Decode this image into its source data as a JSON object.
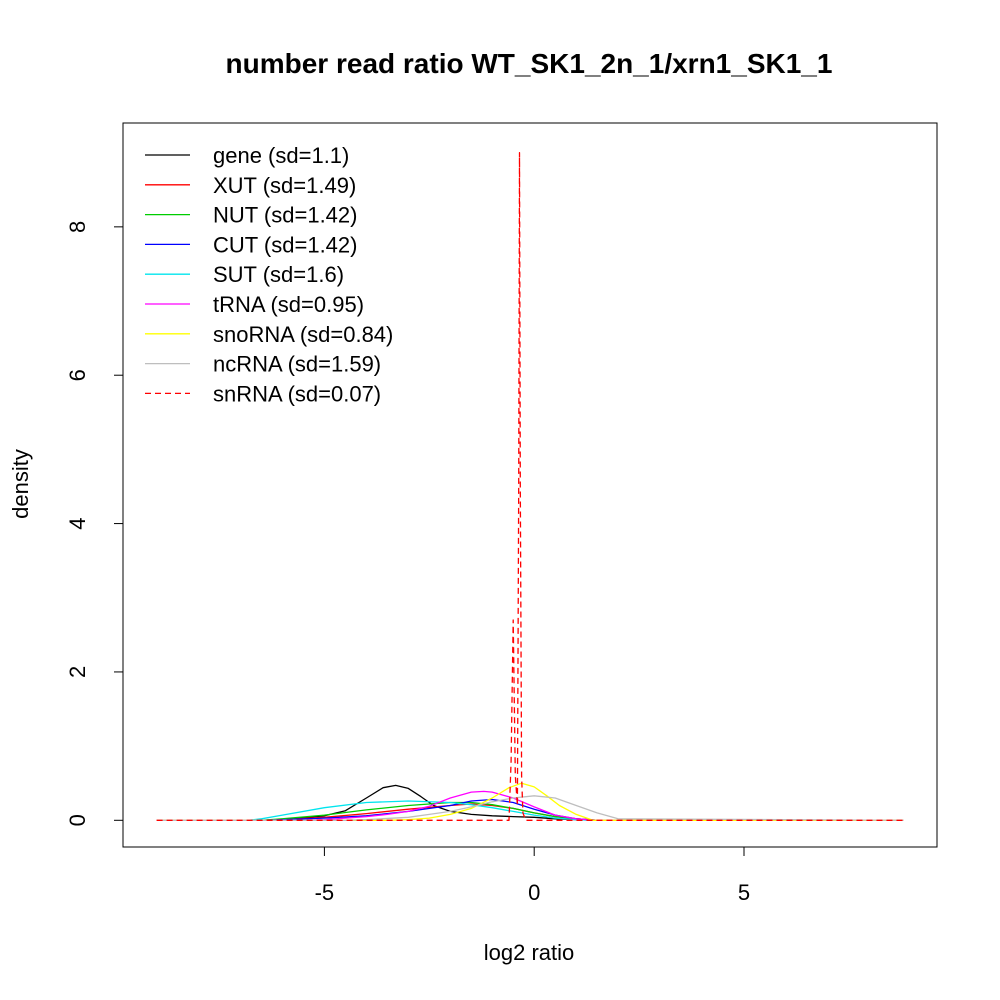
{
  "chart_data": {
    "type": "line",
    "title": "number read ratio WT_SK1_2n_1/xrn1_SK1_1",
    "xlabel": "log2 ratio",
    "ylabel": "density",
    "xlim": [
      -9.8,
      9.6
    ],
    "ylim": [
      -0.36,
      9.4
    ],
    "xticks": [
      -5,
      0,
      5
    ],
    "xtick_labels": [
      "-5",
      "0",
      "5"
    ],
    "yticks": [
      0,
      2,
      4,
      6,
      8
    ],
    "ytick_labels": [
      "0",
      "2",
      "4",
      "6",
      "8"
    ],
    "grid": false,
    "legend_position": "top-left",
    "series": [
      {
        "name": "gene (sd=1.1)",
        "color": "#000000",
        "dash": false,
        "x": [
          -9,
          -6.6,
          -6,
          -5,
          -4.5,
          -4,
          -3.6,
          -3.3,
          -3,
          -2.7,
          -2.4,
          -2,
          -1.5,
          -1,
          -0.5,
          0,
          0.5,
          1,
          1.5,
          8.8
        ],
        "y": [
          0,
          0,
          0.01,
          0.06,
          0.13,
          0.3,
          0.44,
          0.47,
          0.43,
          0.32,
          0.2,
          0.12,
          0.08,
          0.06,
          0.05,
          0.04,
          0.02,
          0.01,
          0,
          0
        ]
      },
      {
        "name": "XUT (sd=1.49)",
        "color": "#ff0000",
        "dash": false,
        "x": [
          -9,
          -6.5,
          -6,
          -5,
          -4,
          -3,
          -2,
          -1.5,
          -1,
          -0.5,
          0,
          0.5,
          1,
          1.5,
          8.8
        ],
        "y": [
          0,
          0,
          0.01,
          0.04,
          0.09,
          0.15,
          0.2,
          0.22,
          0.2,
          0.16,
          0.1,
          0.05,
          0.02,
          0,
          0
        ]
      },
      {
        "name": "NUT (sd=1.42)",
        "color": "#00cd00",
        "dash": false,
        "x": [
          -9,
          -6.5,
          -6,
          -5,
          -4,
          -3,
          -2,
          -1.5,
          -1,
          -0.5,
          0,
          0.5,
          1,
          1.5,
          8.8
        ],
        "y": [
          0,
          0,
          0.02,
          0.07,
          0.14,
          0.2,
          0.24,
          0.24,
          0.21,
          0.16,
          0.1,
          0.05,
          0.02,
          0,
          0
        ]
      },
      {
        "name": "CUT (sd=1.42)",
        "color": "#0000ff",
        "dash": false,
        "x": [
          -9,
          -6.5,
          -6,
          -5,
          -4,
          -3,
          -2,
          -1.5,
          -1,
          -0.5,
          0,
          0.5,
          1,
          1.5,
          8.8
        ],
        "y": [
          0,
          0,
          0.01,
          0.03,
          0.06,
          0.12,
          0.2,
          0.26,
          0.28,
          0.24,
          0.15,
          0.07,
          0.02,
          0,
          0
        ]
      },
      {
        "name": "SUT (sd=1.6)",
        "color": "#00e5ee",
        "dash": false,
        "x": [
          -9,
          -6.8,
          -6.5,
          -6,
          -5,
          -4,
          -3,
          -2,
          -1.5,
          -1,
          -0.5,
          0,
          0.5,
          1,
          1.5,
          8.8
        ],
        "y": [
          0,
          0,
          0.02,
          0.07,
          0.17,
          0.24,
          0.26,
          0.24,
          0.21,
          0.17,
          0.12,
          0.07,
          0.03,
          0.01,
          0,
          0
        ]
      },
      {
        "name": "tRNA (sd=0.95)",
        "color": "#ff00ff",
        "dash": false,
        "x": [
          -9,
          -5.5,
          -5,
          -4.5,
          -4,
          -3.5,
          -3,
          -2.5,
          -2,
          -1.5,
          -1.2,
          -1,
          -0.5,
          0,
          0.5,
          1,
          1.5,
          8.8
        ],
        "y": [
          0,
          0,
          0.01,
          0.03,
          0.05,
          0.08,
          0.12,
          0.19,
          0.3,
          0.38,
          0.39,
          0.38,
          0.3,
          0.18,
          0.07,
          0.02,
          0,
          0
        ]
      },
      {
        "name": "snoRNA (sd=0.84)",
        "color": "#ffff00",
        "dash": false,
        "x": [
          -9,
          -3.5,
          -3,
          -2.5,
          -2,
          -1.5,
          -1,
          -0.6,
          -0.3,
          0,
          0.3,
          0.6,
          1,
          1.4,
          8.8
        ],
        "y": [
          0,
          0,
          0.01,
          0.03,
          0.08,
          0.16,
          0.3,
          0.44,
          0.5,
          0.45,
          0.33,
          0.2,
          0.08,
          0,
          0
        ]
      },
      {
        "name": "ncRNA (sd=1.59)",
        "color": "#bebebe",
        "dash": false,
        "x": [
          -9,
          -4.5,
          -4,
          -3,
          -2.5,
          -2,
          -1.5,
          -1,
          -0.5,
          0,
          0.5,
          1,
          1.5,
          2,
          8.8
        ],
        "y": [
          0,
          0,
          0.01,
          0.04,
          0.08,
          0.12,
          0.18,
          0.25,
          0.3,
          0.33,
          0.3,
          0.2,
          0.1,
          0.02,
          0
        ]
      },
      {
        "name": "snRNA (sd=0.07)",
        "color": "#ff0000",
        "dash": true,
        "x": [
          -9,
          -0.6,
          -0.55,
          -0.5,
          -0.45,
          -0.4,
          -0.37,
          -0.35,
          -0.33,
          -0.3,
          -0.27,
          -0.2,
          8.8
        ],
        "y": [
          0,
          0,
          0.8,
          2.7,
          0.6,
          0.2,
          4.5,
          9.0,
          4.5,
          0.6,
          0.1,
          0,
          0
        ]
      }
    ]
  }
}
